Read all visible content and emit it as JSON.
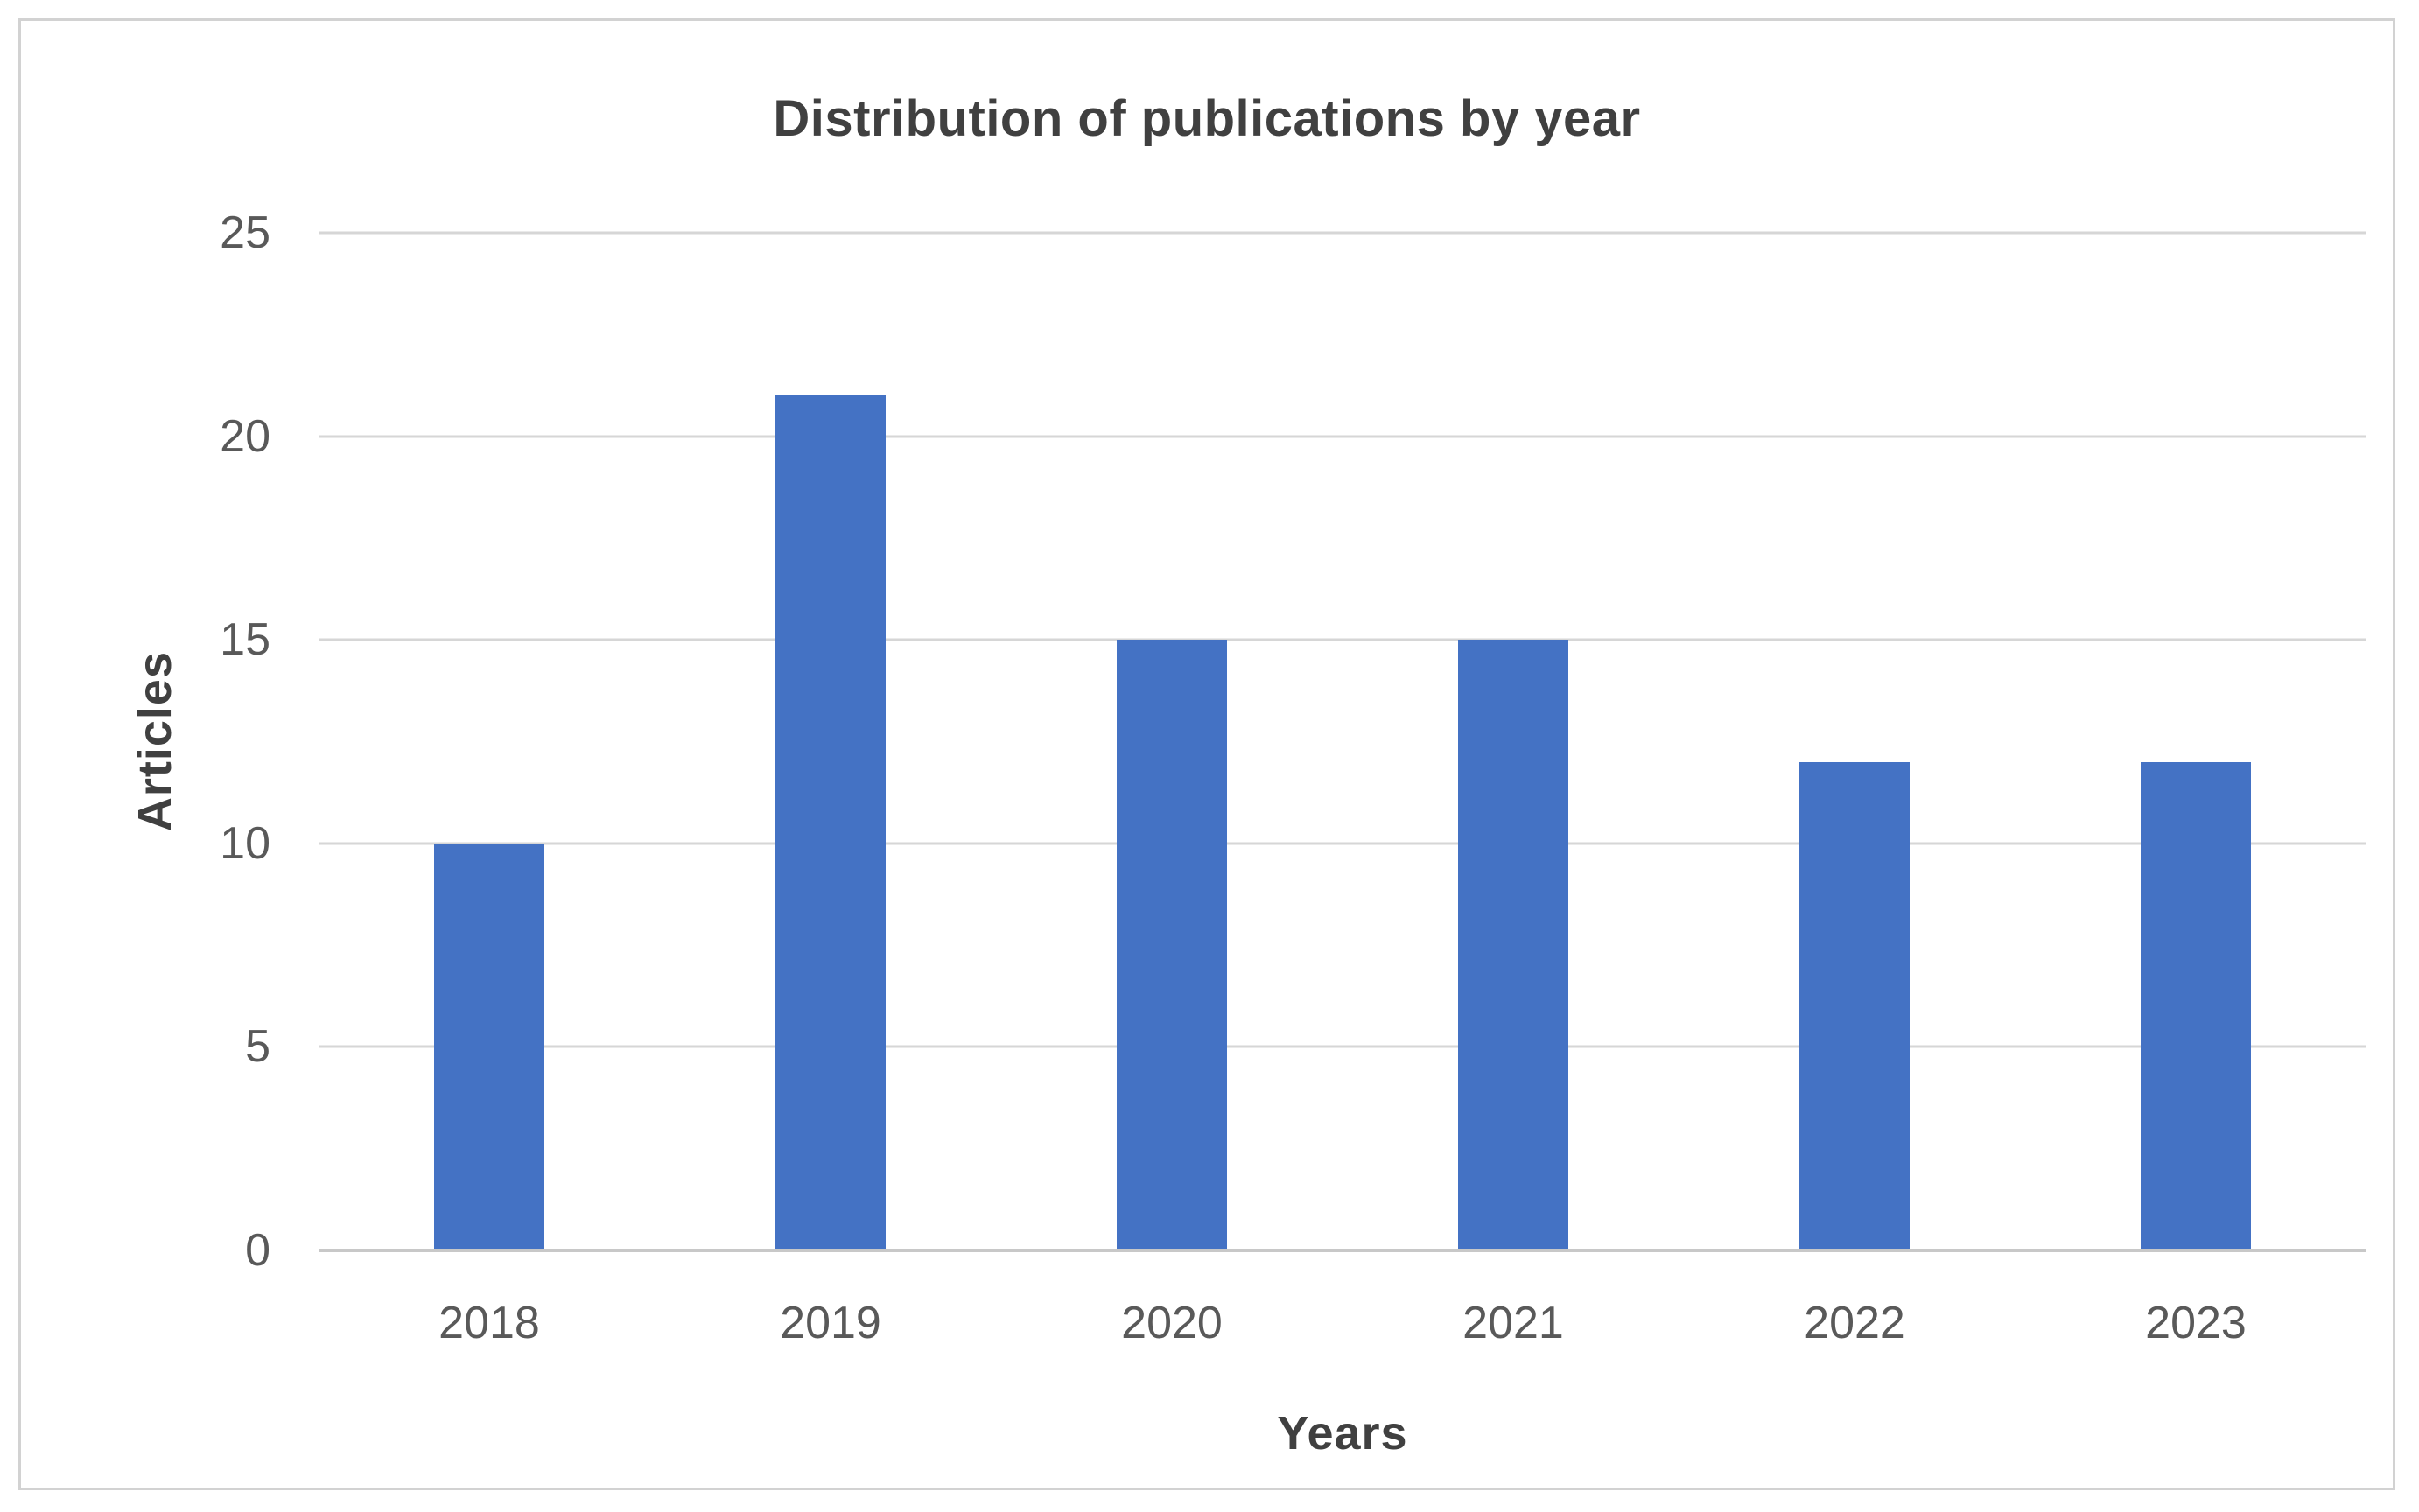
{
  "chart_data": {
    "type": "bar",
    "title": "Distribution of publications by year",
    "categories": [
      "2018",
      "2019",
      "2020",
      "2021",
      "2022",
      "2023"
    ],
    "values": [
      10,
      21,
      15,
      15,
      12,
      12
    ],
    "xlabel": "Years",
    "ylabel": "Articles",
    "ylim": [
      0,
      25
    ],
    "yticks": [
      0,
      5,
      10,
      15,
      20,
      25
    ],
    "grid": "horizontal",
    "legend": "none",
    "colors": {
      "bar": "#4472C4",
      "gridline": "#d6d6d6",
      "axis_line": "#c8c8c8",
      "tick_label": "#595959",
      "title_text": "#404040",
      "figure_border": "#d2d2d2"
    }
  }
}
